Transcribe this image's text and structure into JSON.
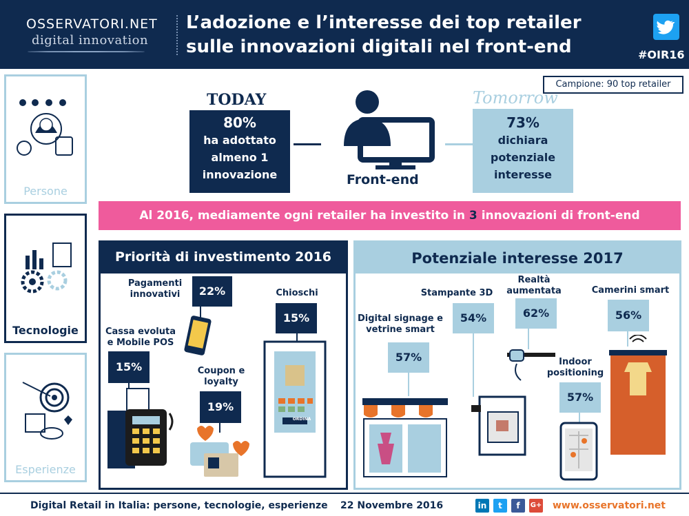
{
  "header": {
    "logo_top": "OSSERVATORI.NET",
    "logo_bottom": "digital innovation",
    "title": "L’adozione e l’interesse dei top retailer sulle innovazioni digitali nel front-end",
    "hashtag": "#OIR16",
    "twitter_icon": "twitter-bird-icon"
  },
  "sidebar": {
    "items": [
      {
        "label": "Persone"
      },
      {
        "label": "Tecnologie"
      },
      {
        "label": "Esperienze"
      }
    ]
  },
  "sample": "Campione: 90 top retailer",
  "today": {
    "heading": "TODAY",
    "value": "80%",
    "text": "ha adottato almeno 1 innovazione"
  },
  "frontend_label": "Front-end",
  "tomorrow": {
    "heading": "Tomorrow",
    "value": "73%",
    "text": "dichiara potenziale interesse"
  },
  "banner": {
    "prefix": "Al 2016, mediamente ogni retailer ha investito in",
    "number": "3",
    "suffix": "innovazioni di front-end"
  },
  "priorita": {
    "title": "Priorità di investimento 2016",
    "items": [
      {
        "label": "Pagamenti innovativi",
        "value": "22%"
      },
      {
        "label": "Chioschi",
        "value": "15%"
      },
      {
        "label": "Cassa evoluta e Mobile POS",
        "value": "15%"
      },
      {
        "label": "Coupon e loyalty",
        "value": "19%"
      }
    ],
    "kiosk_button": "ORDINA"
  },
  "interesse": {
    "title": "Potenziale interesse 2017",
    "items": [
      {
        "label": "Stampante 3D",
        "value": "54%"
      },
      {
        "label": "Realtà aumentata",
        "value": "62%"
      },
      {
        "label": "Camerini smart",
        "value": "56%"
      },
      {
        "label": "Digital signage e vetrine smart",
        "value": "57%"
      },
      {
        "label": "Indoor positioning",
        "value": "57%"
      }
    ]
  },
  "footer": {
    "text": "Digital Retail in Italia: persone, tecnologie, esperienze",
    "date": "22 Novembre 2016",
    "site": "www.osservatori.net",
    "social": [
      "in",
      "t",
      "f",
      "G+"
    ]
  },
  "colors": {
    "navy": "#0f2a4f",
    "light_blue": "#a9cfe0",
    "pink": "#ef5b9c",
    "orange": "#e8742a"
  }
}
